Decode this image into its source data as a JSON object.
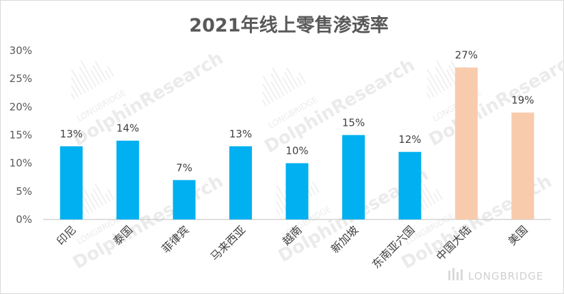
{
  "chart_data": {
    "type": "bar",
    "title": "2021年线上零售渗透率",
    "categories": [
      "印尼",
      "泰国",
      "菲律宾",
      "马来西亚",
      "越南",
      "新加坡",
      "东南亚六国",
      "中国大陆",
      "美国"
    ],
    "values": [
      13,
      14,
      7,
      13,
      10,
      15,
      12,
      27,
      19
    ],
    "data_labels": [
      "13%",
      "14%",
      "7%",
      "13%",
      "10%",
      "15%",
      "12%",
      "27%",
      "19%"
    ],
    "y_ticks": [
      "0%",
      "5%",
      "10%",
      "15%",
      "20%",
      "25%",
      "30%"
    ],
    "ylim": [
      0,
      30
    ],
    "ytick_step": 5,
    "bar_colors": [
      "#00b0f0",
      "#00b0f0",
      "#00b0f0",
      "#00b0f0",
      "#00b0f0",
      "#00b0f0",
      "#00b0f0",
      "#f8cbad",
      "#f8cbad"
    ],
    "grid": false,
    "xlabel": "",
    "ylabel": ""
  },
  "watermark": {
    "brand_logo_text": "LONGBRIDGE",
    "tile_small": "LONGBRIDGE",
    "tile_large": "DolphinResearch"
  }
}
